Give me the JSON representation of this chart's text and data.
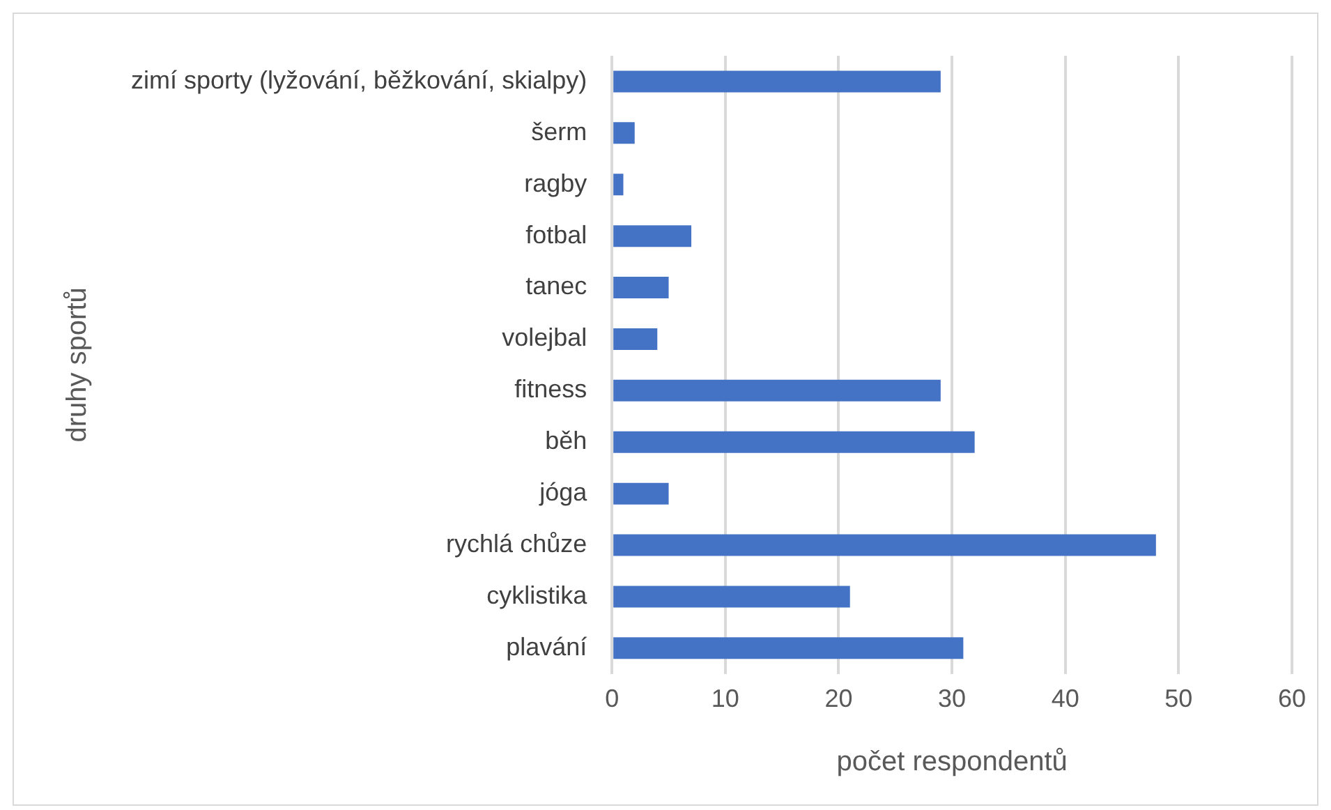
{
  "chart_data": {
    "type": "bar",
    "orientation": "horizontal",
    "xlabel": "počet respondentů",
    "ylabel": "druhy sportů",
    "categories": [
      "zimí sporty (lyžování, běžkování, skialpy)",
      "šerm",
      "ragby",
      "fotbal",
      "tanec",
      "volejbal",
      "fitness",
      "běh",
      "jóga",
      "rychlá chůze",
      "cyklistika",
      "plavání"
    ],
    "values": [
      29,
      2,
      1,
      7,
      5,
      4,
      29,
      32,
      5,
      48,
      21,
      31
    ],
    "color": "#4472c4",
    "xlim": [
      0,
      60
    ],
    "xticks": [
      0,
      10,
      20,
      30,
      40,
      50,
      60
    ],
    "grid": "x",
    "legend": false
  }
}
